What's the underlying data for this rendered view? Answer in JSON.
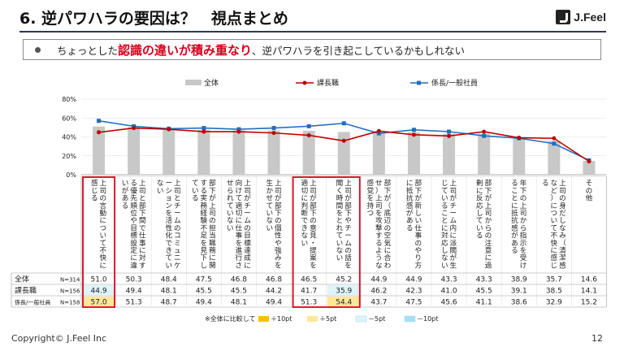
{
  "slide": {
    "title": "6. 逆パワハラの要因は？　視点まとめ",
    "logo": "J.Feel",
    "summary_pre": "ちょっとした",
    "summary_emph": "認識の違いが積み重なり",
    "summary_post": "、逆パワハラを引き起こしているかもしれない",
    "footer": "Copyright©  J.Feel Inc",
    "page": "12"
  },
  "table_legend": {
    "note": "※全体に比較して",
    "items": [
      {
        "label": "＋10pt",
        "color": "#f5c200"
      },
      {
        "label": "＋5pt",
        "color": "#fde79a"
      },
      {
        "label": "－5pt",
        "color": "#dff3fb"
      },
      {
        "label": "－10pt",
        "color": "#a6e0f5"
      }
    ]
  },
  "chart_data": {
    "type": "bar",
    "legend": [
      "全体",
      "課長職",
      "係長/一般社員"
    ],
    "colors": {
      "overall": "#c8c8c8",
      "manager": "#c00000",
      "staff": "#1f6fbf"
    },
    "ylim": [
      0,
      80
    ],
    "yticks": [
      "0%",
      "20%",
      "40%",
      "60%",
      "80%"
    ],
    "categories": [
      "上司の言動について不快に感じる",
      "上司と部下間で仕事に対する優先順位や目標設定に違いがある",
      "上司とチームのコミュニケーションを活性化できていない",
      "部下が上司の担当職務に関する実務経験不足を見下している",
      "上司がチームの目標達成に向けて適切に仕事を進行させられていない",
      "上司が部下の個性や強みを生かせていない",
      "上司が部下の意見・提案を適切に判断できない",
      "上司が部下やチームの話を聞く時間をとれていない",
      "部下が（底辺の空気に合わせ）上司を攻撃するような感覚を持つ",
      "部下が新しい仕事のやり方に抵抗感がある",
      "上司がチーム内に派閥が生じていることに対応しない",
      "部下が上司からの注意に過剰に反応している",
      "年下の上司から指示を受けることに抵抗感がある",
      "上司の身だしなみ（清潔感など）について不快に感じる",
      "その他"
    ],
    "rows": [
      {
        "label": "全体",
        "n": "N=314",
        "values": [
          "51.0",
          "50.3",
          "48.4",
          "47.5",
          "46.8",
          "46.8",
          "46.5",
          "45.2",
          "44.9",
          "44.9",
          "43.3",
          "43.3",
          "38.9",
          "35.7",
          "14.6"
        ]
      },
      {
        "label": "課長職",
        "n": "N=156",
        "values": [
          "44.9",
          "49.4",
          "48.1",
          "45.5",
          "45.5",
          "44.2",
          "41.7",
          "35.9",
          "46.2",
          "42.3",
          "41.0",
          "45.5",
          "39.1",
          "38.5",
          "14.1"
        ]
      },
      {
        "label": "係長/一般社員",
        "n": "N=158",
        "values": [
          "57.0",
          "51.3",
          "48.7",
          "49.4",
          "48.1",
          "49.4",
          "51.3",
          "54.4",
          "43.7",
          "47.5",
          "45.6",
          "41.1",
          "38.6",
          "32.9",
          "15.2"
        ]
      }
    ]
  }
}
